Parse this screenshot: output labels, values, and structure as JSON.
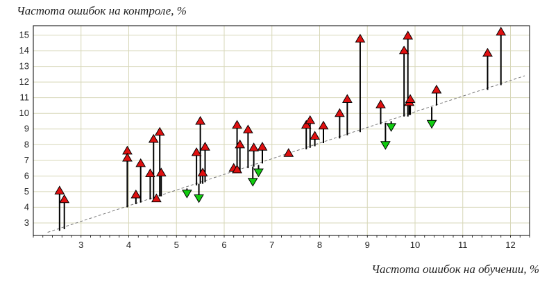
{
  "chart_data": {
    "type": "scatter",
    "title": "",
    "xlabel": "Частота ошибок на обучении, %",
    "ylabel": "Частота ошибок на контроле, %",
    "xlim": [
      2.0,
      12.4
    ],
    "ylim": [
      2.2,
      15.6
    ],
    "x_ticks": [
      3,
      4,
      5,
      6,
      7,
      8,
      9,
      10,
      11,
      12
    ],
    "y_ticks": [
      3,
      4,
      5,
      6,
      7,
      8,
      9,
      10,
      11,
      12,
      13,
      14,
      15
    ],
    "grid": true,
    "reference_line": {
      "style": "dashed",
      "points": [
        [
          2.3,
          2.4
        ],
        [
          12.3,
          12.4
        ]
      ]
    },
    "colors": {
      "up": "#e01010",
      "down": "#10cc10",
      "grid": "#d7d7b8",
      "plot_bg": "#ffffff"
    },
    "series": [
      {
        "marker": "triangle-up",
        "color": "#e01010",
        "points": [
          {
            "x": 2.55,
            "base": 2.5,
            "y": 5.05
          },
          {
            "x": 2.65,
            "base": 2.6,
            "y": 4.5
          },
          {
            "x": 3.97,
            "base": 4.0,
            "y": 7.6
          },
          {
            "x": 3.97,
            "base": 4.0,
            "y": 7.15
          },
          {
            "x": 4.15,
            "base": 4.2,
            "y": 4.8
          },
          {
            "x": 4.25,
            "base": 4.3,
            "y": 6.8
          },
          {
            "x": 4.45,
            "base": 4.5,
            "y": 6.15
          },
          {
            "x": 4.52,
            "base": 4.5,
            "y": 8.35
          },
          {
            "x": 4.58,
            "base": 4.6,
            "y": 4.55
          },
          {
            "x": 4.65,
            "base": 4.7,
            "y": 8.8
          },
          {
            "x": 4.68,
            "base": 4.7,
            "y": 6.2
          },
          {
            "x": 5.42,
            "base": 5.4,
            "y": 7.5
          },
          {
            "x": 5.5,
            "base": 5.5,
            "y": 9.5
          },
          {
            "x": 5.55,
            "base": 5.5,
            "y": 6.2
          },
          {
            "x": 5.6,
            "base": 5.6,
            "y": 7.85
          },
          {
            "x": 6.2,
            "base": 6.2,
            "y": 6.5
          },
          {
            "x": 6.27,
            "base": 6.3,
            "y": 9.25
          },
          {
            "x": 6.27,
            "base": 6.3,
            "y": 6.4
          },
          {
            "x": 6.33,
            "base": 6.3,
            "y": 8.0
          },
          {
            "x": 6.5,
            "base": 6.5,
            "y": 8.95
          },
          {
            "x": 6.62,
            "base": 6.6,
            "y": 7.8
          },
          {
            "x": 6.8,
            "base": 6.8,
            "y": 7.85
          },
          {
            "x": 7.35,
            "base": 7.4,
            "y": 7.45
          },
          {
            "x": 7.72,
            "base": 7.7,
            "y": 9.25
          },
          {
            "x": 7.8,
            "base": 7.8,
            "y": 9.55
          },
          {
            "x": 7.9,
            "base": 7.9,
            "y": 8.55
          },
          {
            "x": 8.08,
            "base": 8.1,
            "y": 9.2
          },
          {
            "x": 8.42,
            "base": 8.4,
            "y": 10.0
          },
          {
            "x": 8.58,
            "base": 8.6,
            "y": 10.9
          },
          {
            "x": 8.85,
            "base": 8.8,
            "y": 14.75
          },
          {
            "x": 9.28,
            "base": 9.3,
            "y": 10.55
          },
          {
            "x": 9.77,
            "base": 9.8,
            "y": 14.0
          },
          {
            "x": 9.85,
            "base": 9.8,
            "y": 14.95
          },
          {
            "x": 9.88,
            "base": 9.9,
            "y": 10.7
          },
          {
            "x": 9.9,
            "base": 9.9,
            "y": 10.9
          },
          {
            "x": 10.45,
            "base": 10.5,
            "y": 11.5
          },
          {
            "x": 11.52,
            "base": 11.5,
            "y": 13.85
          },
          {
            "x": 11.8,
            "base": 11.8,
            "y": 15.2
          }
        ]
      },
      {
        "marker": "triangle-down",
        "color": "#10cc10",
        "points": [
          {
            "x": 5.22,
            "base": 5.2,
            "y": 4.9
          },
          {
            "x": 5.47,
            "base": 5.5,
            "y": 4.6
          },
          {
            "x": 6.6,
            "base": 6.6,
            "y": 5.65
          },
          {
            "x": 6.72,
            "base": 6.7,
            "y": 6.25
          },
          {
            "x": 9.38,
            "base": 9.4,
            "y": 8.0
          },
          {
            "x": 9.5,
            "base": 9.5,
            "y": 9.15
          },
          {
            "x": 10.35,
            "base": 10.4,
            "y": 9.35
          }
        ]
      }
    ]
  }
}
